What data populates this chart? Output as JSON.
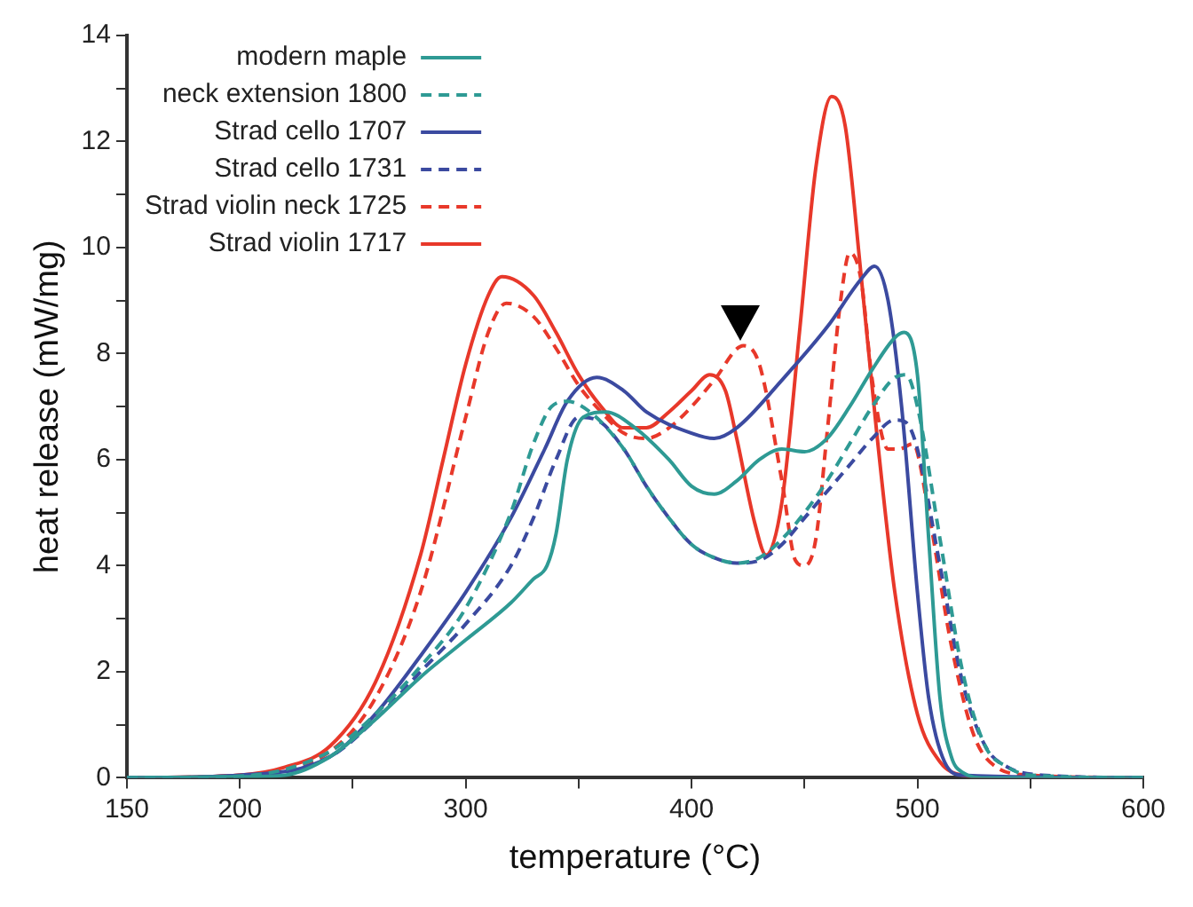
{
  "chart_data": {
    "type": "line",
    "xlabel": "temperature (°C)",
    "ylabel": "heat release (mW/mg)",
    "xlim": [
      150,
      600
    ],
    "xticks": [
      150,
      200,
      {
        "value": 250,
        "label": null
      },
      300,
      {
        "value": 350,
        "label": null
      },
      400,
      {
        "value": 450,
        "label": null
      },
      500,
      {
        "value": 550,
        "label": null
      },
      600
    ],
    "ylim": [
      0,
      14
    ],
    "yticks": [
      0,
      {
        "value": 1,
        "label": null
      },
      2,
      {
        "value": 3,
        "label": null
      },
      4,
      {
        "value": 5,
        "label": null
      },
      6,
      {
        "value": 7,
        "label": null
      },
      8,
      {
        "value": 9,
        "label": null
      },
      10,
      {
        "value": 11,
        "label": null
      },
      12,
      {
        "value": 13,
        "label": null
      },
      14
    ],
    "grid": false,
    "legend": "top left",
    "marker": "none",
    "series": [
      {
        "name": "modern maple",
        "color": "#2e9a94",
        "line_style": "solid",
        "x": [
          150,
          200,
          220,
          240,
          260,
          280,
          300,
          320,
          330,
          336,
          340,
          345,
          352,
          362,
          375,
          390,
          400,
          410,
          420,
          430,
          440,
          450,
          460,
          470,
          480,
          490,
          494,
          500,
          505,
          510,
          515,
          520,
          530,
          600
        ],
        "values": [
          0,
          0.02,
          0.05,
          0.4,
          1.1,
          1.9,
          2.6,
          3.3,
          3.75,
          4.0,
          4.6,
          6.0,
          6.8,
          6.9,
          6.6,
          6.0,
          5.5,
          5.35,
          5.6,
          6.0,
          6.2,
          6.15,
          6.4,
          7.0,
          7.7,
          8.3,
          8.4,
          7.6,
          4.5,
          1.5,
          0.4,
          0.1,
          0,
          0
        ]
      },
      {
        "name": "neck extension 1800",
        "color": "#2e9a94",
        "line_style": "dashed",
        "x": [
          150,
          200,
          240,
          260,
          280,
          300,
          320,
          330,
          338,
          345,
          355,
          370,
          380,
          390,
          400,
          410,
          420,
          430,
          440,
          450,
          460,
          470,
          480,
          490,
          495,
          500,
          510,
          520,
          530,
          540,
          550,
          600
        ],
        "values": [
          0,
          0.03,
          0.5,
          1.2,
          2.1,
          3.2,
          5.0,
          6.3,
          7.0,
          7.1,
          6.9,
          6.2,
          5.5,
          4.9,
          4.4,
          4.15,
          4.05,
          4.15,
          4.5,
          5.0,
          5.6,
          6.3,
          7.0,
          7.55,
          7.6,
          7.0,
          4.5,
          2.0,
          0.6,
          0.2,
          0.05,
          0
        ]
      },
      {
        "name": "Strad cello 1707",
        "color": "#3b4aa0",
        "line_style": "solid",
        "x": [
          150,
          200,
          240,
          260,
          280,
          300,
          320,
          335,
          345,
          358,
          370,
          380,
          400,
          410,
          420,
          440,
          460,
          475,
          481,
          487,
          493,
          500,
          505,
          512,
          520,
          600
        ],
        "values": [
          0,
          0.05,
          0.4,
          1.2,
          2.3,
          3.5,
          4.9,
          6.2,
          7.1,
          7.55,
          7.3,
          6.9,
          6.5,
          6.4,
          6.6,
          7.5,
          8.5,
          9.4,
          9.65,
          9.0,
          7.0,
          3.5,
          1.5,
          0.3,
          0.05,
          0
        ]
      },
      {
        "name": "Strad cello 1731",
        "color": "#3b4aa0",
        "line_style": "dashed",
        "x": [
          150,
          200,
          240,
          260,
          280,
          300,
          320,
          330,
          340,
          350,
          360,
          370,
          380,
          390,
          400,
          410,
          420,
          430,
          440,
          450,
          460,
          470,
          480,
          490,
          495,
          500,
          510,
          520,
          530,
          540,
          555,
          600
        ],
        "values": [
          0,
          0.03,
          0.4,
          1.1,
          2.0,
          2.9,
          4.0,
          4.9,
          6.0,
          6.8,
          6.7,
          6.2,
          5.5,
          4.9,
          4.4,
          4.15,
          4.05,
          4.1,
          4.4,
          4.9,
          5.4,
          5.9,
          6.4,
          6.75,
          6.7,
          6.2,
          4.0,
          1.8,
          0.6,
          0.2,
          0.05,
          0
        ]
      },
      {
        "name": "Strad violin neck 1725",
        "color": "#e8382a",
        "line_style": "dashed",
        "x": [
          150,
          200,
          240,
          260,
          280,
          300,
          310,
          318,
          330,
          340,
          350,
          360,
          370,
          380,
          390,
          400,
          410,
          423,
          430,
          440,
          446,
          450,
          455,
          460,
          466,
          470,
          475,
          480,
          487,
          492,
          498,
          505,
          515,
          525,
          535,
          550,
          600
        ],
        "values": [
          0,
          0.05,
          0.5,
          1.5,
          3.5,
          6.8,
          8.4,
          8.95,
          8.7,
          8.1,
          7.4,
          6.9,
          6.5,
          6.4,
          6.6,
          7.0,
          7.5,
          8.15,
          7.8,
          5.6,
          4.1,
          4.0,
          4.5,
          6.5,
          9.0,
          9.9,
          9.4,
          7.5,
          6.2,
          6.2,
          6.3,
          5.0,
          2.5,
          0.8,
          0.2,
          0.05,
          0
        ]
      },
      {
        "name": "Strad violin 1717",
        "color": "#e8382a",
        "line_style": "solid",
        "x": [
          150,
          200,
          220,
          240,
          260,
          280,
          290,
          300,
          310,
          316,
          330,
          340,
          350,
          360,
          370,
          380,
          390,
          400,
          408,
          415,
          420,
          428,
          433,
          440,
          448,
          455,
          462,
          468,
          475,
          482,
          490,
          500,
          510,
          520,
          540,
          600
        ],
        "values": [
          0,
          0.05,
          0.2,
          0.6,
          1.8,
          4.2,
          6.0,
          7.8,
          9.1,
          9.45,
          9.1,
          8.4,
          7.6,
          7.0,
          6.6,
          6.6,
          6.9,
          7.3,
          7.6,
          7.3,
          6.4,
          4.8,
          4.2,
          5.2,
          8.5,
          11.5,
          12.85,
          12.3,
          9.5,
          6.5,
          3.5,
          1.2,
          0.3,
          0.05,
          0,
          0
        ]
      }
    ]
  }
}
